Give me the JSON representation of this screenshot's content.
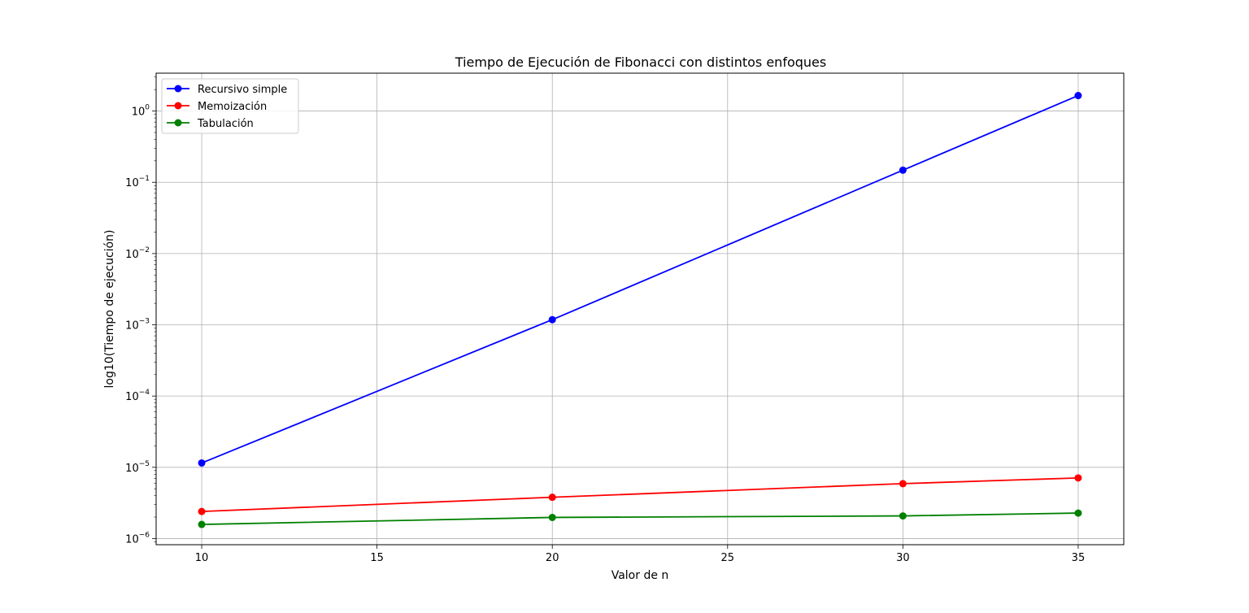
{
  "chart_data": {
    "type": "line",
    "title": "Tiempo de Ejecución de Fibonacci con distintos enfoques",
    "xlabel": "Valor de n",
    "ylabel": "log10(Tiempo de ejecución)",
    "xscale": "linear",
    "yscale": "log",
    "xlim": [
      8.7,
      36.3
    ],
    "ylim": [
      8.2e-07,
      3.4
    ],
    "xticks": [
      10,
      15,
      20,
      25,
      30,
      35
    ],
    "yticks": [
      {
        "value": 1e-06,
        "base": "10",
        "exp": "−6"
      },
      {
        "value": 1e-05,
        "base": "10",
        "exp": "−5"
      },
      {
        "value": 0.0001,
        "base": "10",
        "exp": "−4"
      },
      {
        "value": 0.001,
        "base": "10",
        "exp": "−3"
      },
      {
        "value": 0.01,
        "base": "10",
        "exp": "−2"
      },
      {
        "value": 0.1,
        "base": "10",
        "exp": "−1"
      },
      {
        "value": 1,
        "base": "10",
        "exp": "0"
      }
    ],
    "grid": true,
    "legend_position": "upper-left",
    "x": [
      10,
      20,
      30,
      35
    ],
    "series": [
      {
        "name": "Recursivo simple",
        "color": "#0000ff",
        "marker": "circle",
        "values": [
          1.15e-05,
          0.00118,
          0.148,
          1.65
        ]
      },
      {
        "name": "Memoización",
        "color": "#ff0000",
        "marker": "circle",
        "values": [
          2.4e-06,
          3.8e-06,
          5.9e-06,
          7.1e-06
        ]
      },
      {
        "name": "Tabulación",
        "color": "#008000",
        "marker": "circle",
        "values": [
          1.58e-06,
          1.98e-06,
          2.08e-06,
          2.28e-06
        ]
      }
    ]
  }
}
